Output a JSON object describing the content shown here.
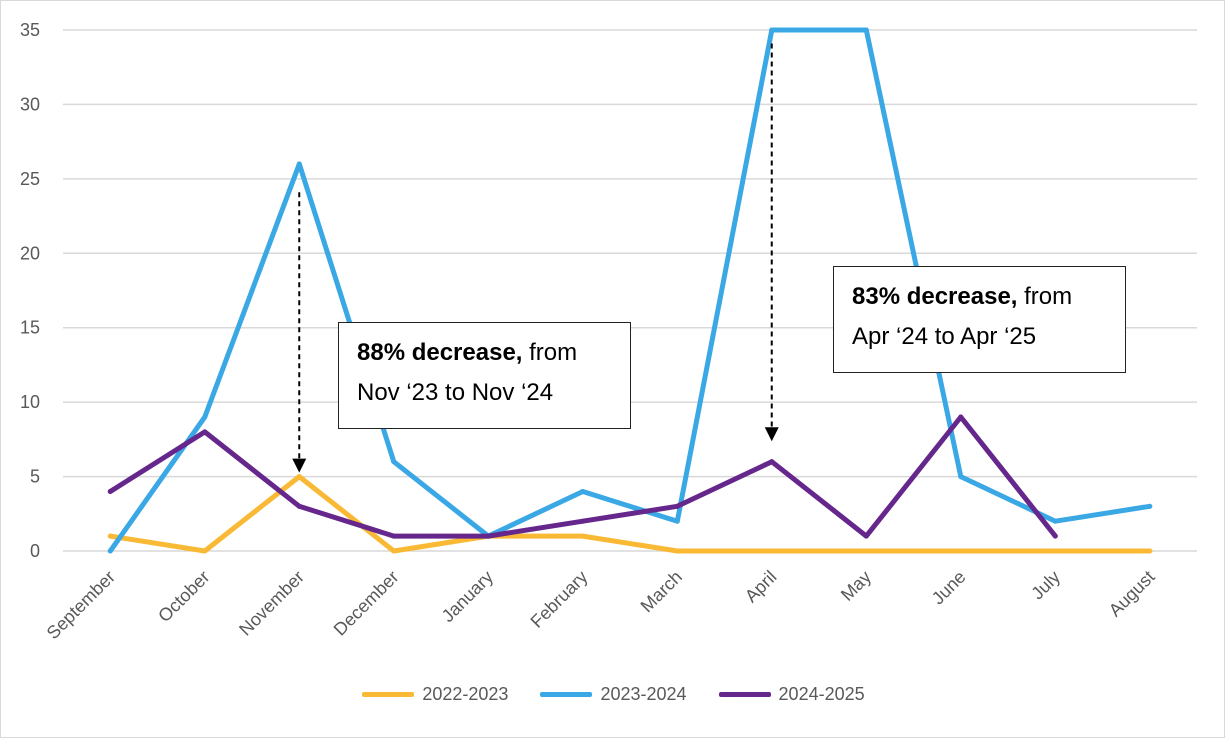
{
  "chart_data": {
    "type": "line",
    "categories": [
      "September",
      "October",
      "November",
      "December",
      "January",
      "February",
      "March",
      "April",
      "May",
      "June",
      "July",
      "August"
    ],
    "ylim": [
      0,
      35
    ],
    "yticks": [
      0,
      5,
      10,
      15,
      20,
      25,
      30,
      35
    ],
    "grid": true,
    "legend_position": "bottom",
    "series": [
      {
        "name": "2022-2023",
        "color": "#F9B934",
        "values": [
          1,
          0,
          5,
          0,
          1,
          1,
          0,
          0,
          0,
          0,
          0,
          0
        ]
      },
      {
        "name": "2023-2024",
        "color": "#3BA8E6",
        "values": [
          0,
          9,
          26,
          6,
          1,
          4,
          2,
          35,
          35,
          5,
          2,
          3
        ]
      },
      {
        "name": "2024-2025",
        "color": "#66278C",
        "values": [
          4,
          8,
          3,
          1,
          1,
          2,
          3,
          6,
          1,
          9,
          1,
          null
        ]
      }
    ],
    "annotations": [
      {
        "bold": "88% decrease,",
        "text1": " from",
        "text2": "Nov ‘23 to Nov ‘24"
      },
      {
        "bold": "83% decrease,",
        "text1": " from",
        "text2": "Apr ‘24 to Apr ‘25"
      }
    ]
  }
}
